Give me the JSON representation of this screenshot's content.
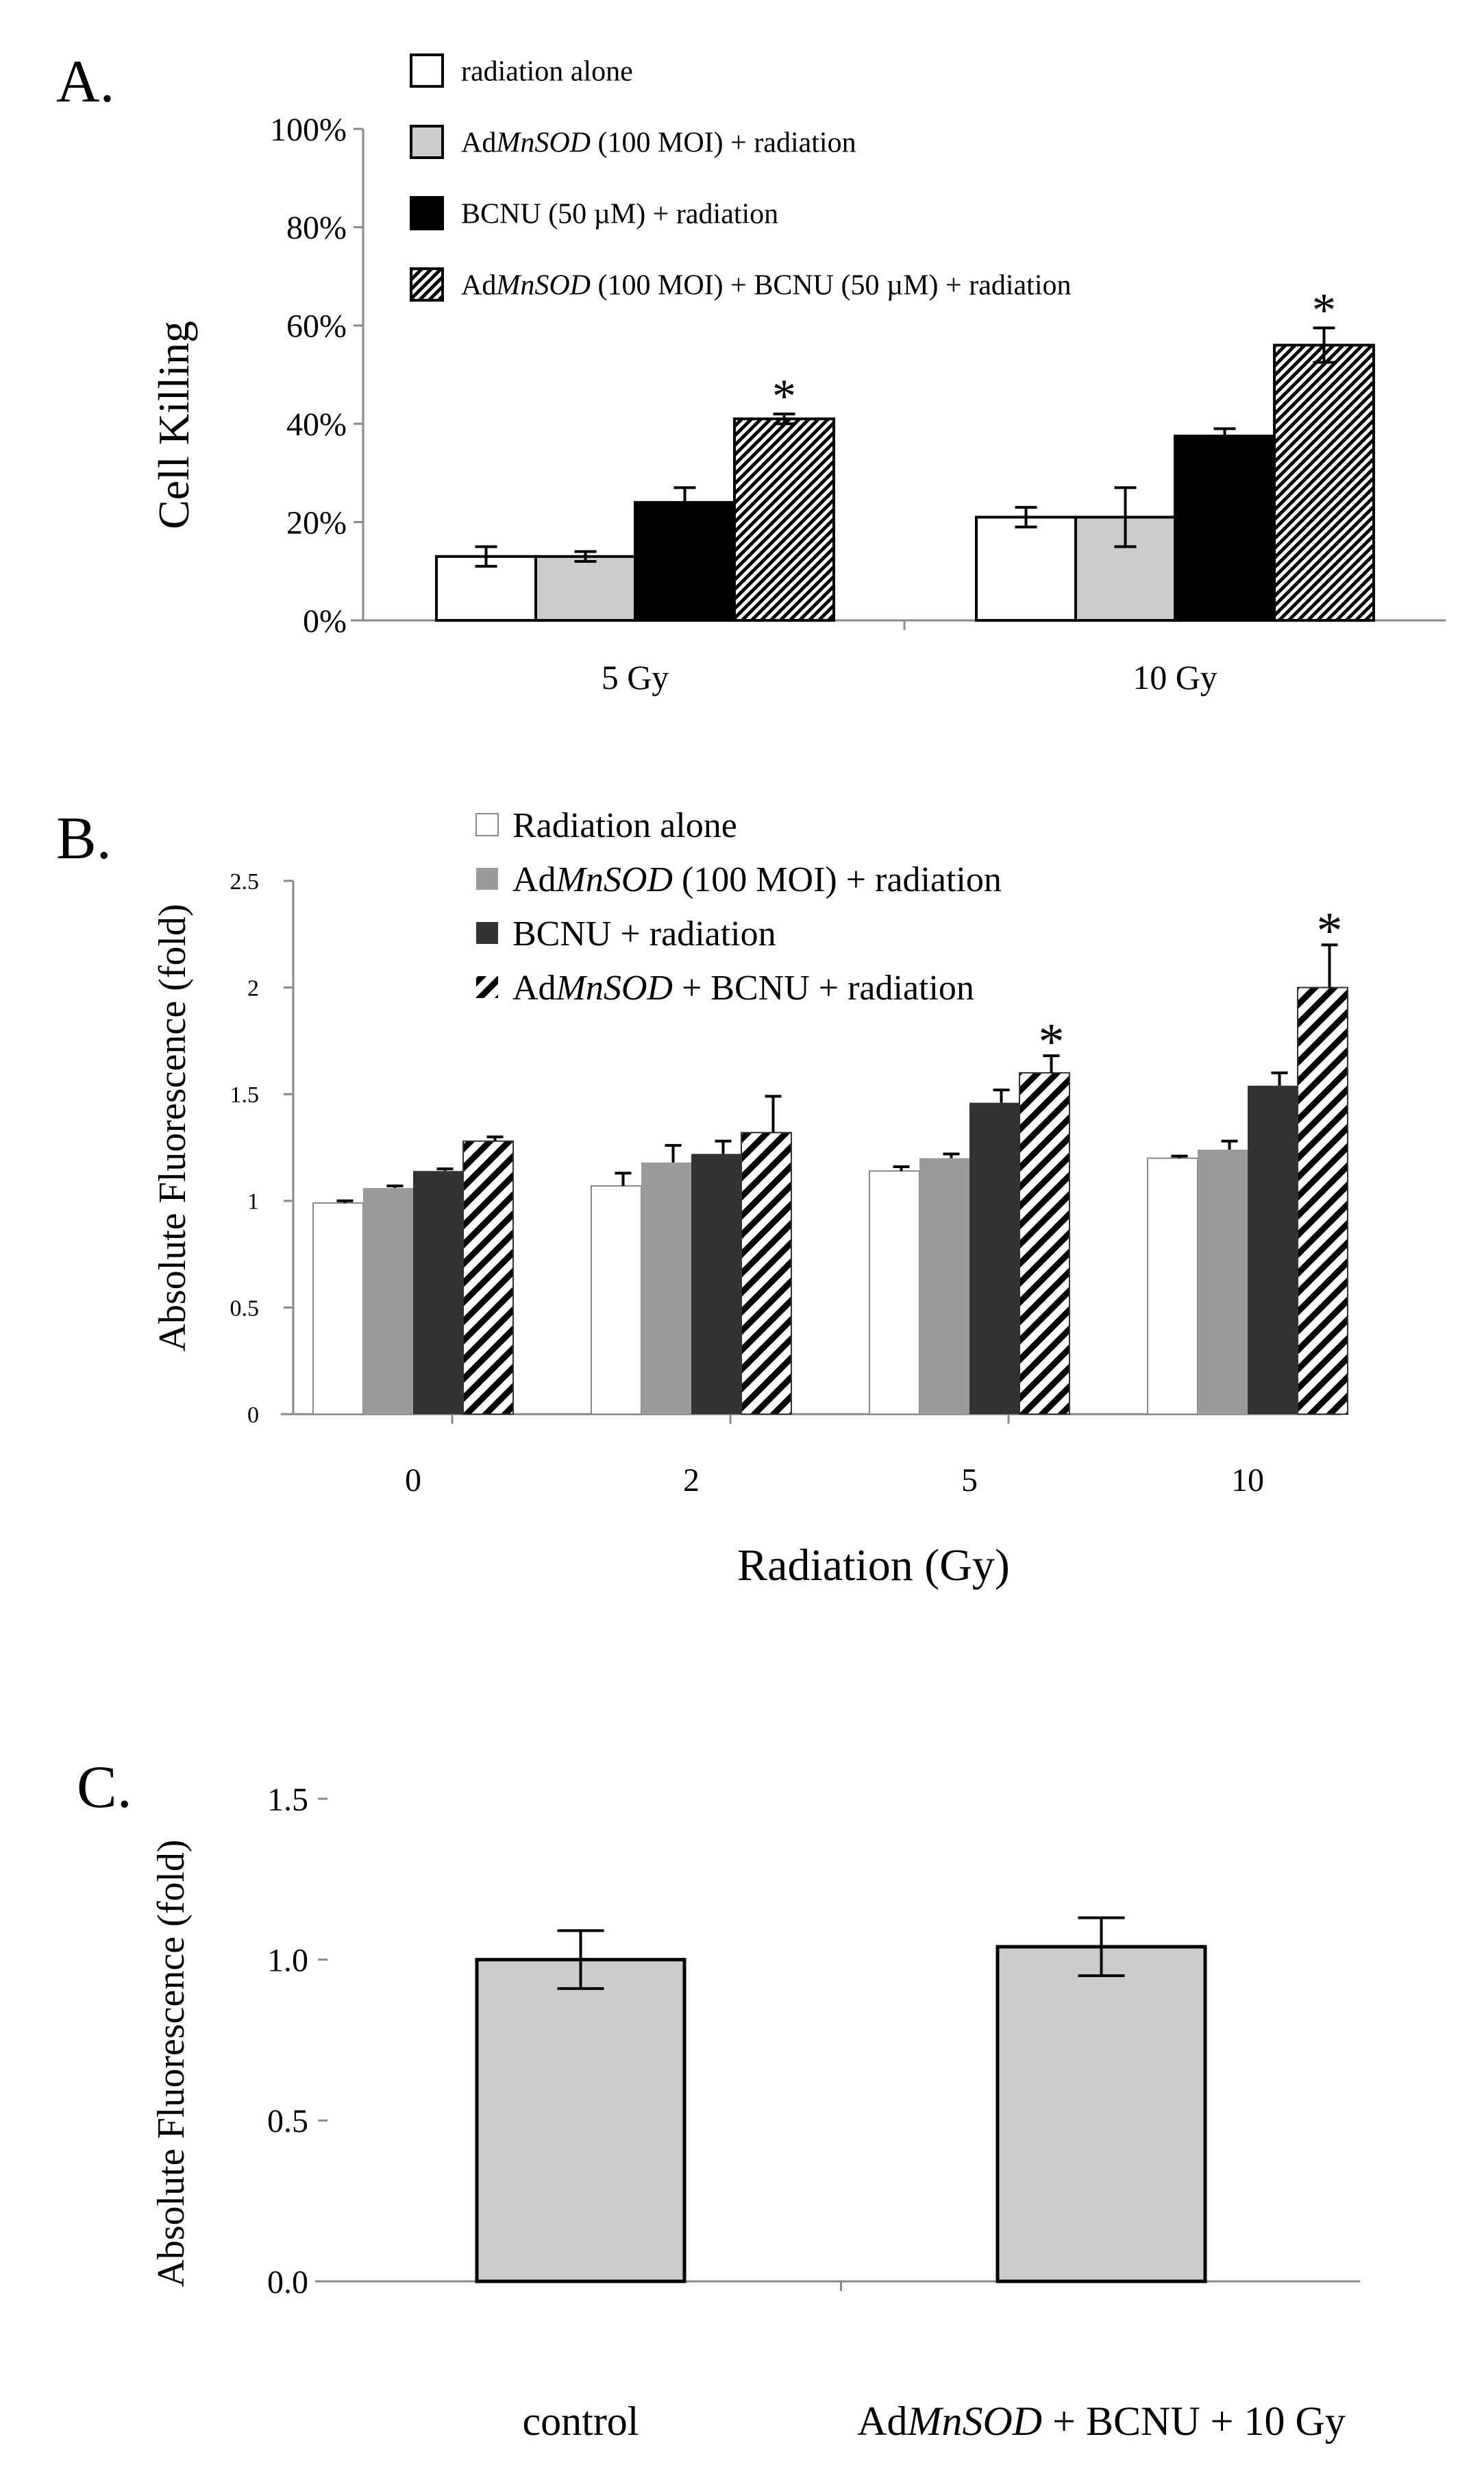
{
  "chart_data": [
    {
      "panel": "A.",
      "type": "bar",
      "ylabel": "Cell Killing",
      "xlabel": "",
      "ylim": [
        0,
        100
      ],
      "yticks": [
        "0%",
        "20%",
        "40%",
        "60%",
        "80%",
        "100%"
      ],
      "ytick_values": [
        0,
        20,
        40,
        60,
        80,
        100
      ],
      "categories": [
        "5 Gy",
        "10 Gy"
      ],
      "legend_position": "top-left",
      "series": [
        {
          "name": "radiation alone",
          "legend": [
            {
              "t": "radiation alone",
              "i": false
            }
          ],
          "fill": "white",
          "values": [
            13,
            21
          ],
          "errors": [
            2,
            2
          ]
        },
        {
          "name": "AdMnSOD (100 MOI) + radiation",
          "legend": [
            {
              "t": "Ad",
              "i": false
            },
            {
              "t": "MnSOD",
              "i": true
            },
            {
              "t": " (100 MOI) + radiation",
              "i": false
            }
          ],
          "fill": "lightgray",
          "values": [
            13,
            21
          ],
          "errors": [
            1,
            6
          ]
        },
        {
          "name": "BCNU (50 µM) + radiation",
          "legend": [
            {
              "t": "BCNU (50 µM) + radiation",
              "i": false
            }
          ],
          "fill": "black",
          "values": [
            24,
            37.5
          ],
          "errors": [
            3,
            1.5
          ]
        },
        {
          "name": "AdMnSOD (100 MOI) + BCNU (50 µM) + radiation",
          "legend": [
            {
              "t": "Ad",
              "i": false
            },
            {
              "t": "MnSOD",
              "i": true
            },
            {
              "t": " (100 MOI) + BCNU (50 µM) + radiation",
              "i": false
            }
          ],
          "fill": "hatch",
          "values": [
            41,
            56
          ],
          "errors": [
            1,
            3.5
          ]
        }
      ],
      "significance": [
        {
          "category": "5 Gy",
          "series": 3,
          "label": "*"
        },
        {
          "category": "10 Gy",
          "series": 3,
          "label": "*"
        }
      ]
    },
    {
      "panel": "B.",
      "type": "bar",
      "ylabel": "Absolute Fluorescence (fold)",
      "xlabel": "Radiation (Gy)",
      "ylim": [
        0,
        2.5
      ],
      "yticks": [
        "0",
        "0.5",
        "1",
        "1.5",
        "2",
        "2.5"
      ],
      "ytick_values": [
        0,
        0.5,
        1,
        1.5,
        2,
        2.5
      ],
      "categories": [
        "0",
        "2",
        "5",
        "10"
      ],
      "legend_position": "top-center",
      "series": [
        {
          "name": "Radiation alone",
          "legend": [
            {
              "t": "Radiation alone",
              "i": false
            }
          ],
          "fill": "white",
          "values": [
            0.99,
            1.07,
            1.14,
            1.2
          ],
          "errors": [
            0.01,
            0.06,
            0.02,
            0.01
          ]
        },
        {
          "name": "AdMnSOD (100 MOI) + radiation",
          "legend": [
            {
              "t": "Ad",
              "i": false
            },
            {
              "t": "MnSOD",
              "i": true
            },
            {
              "t": " (100 MOI) + radiation",
              "i": false
            }
          ],
          "fill": "gray",
          "values": [
            1.06,
            1.18,
            1.2,
            1.24
          ],
          "errors": [
            0.01,
            0.08,
            0.02,
            0.04
          ]
        },
        {
          "name": "BCNU + radiation",
          "legend": [
            {
              "t": "BCNU + radiation",
              "i": false
            }
          ],
          "fill": "darkgray",
          "values": [
            1.14,
            1.22,
            1.46,
            1.54
          ],
          "errors": [
            0.01,
            0.06,
            0.06,
            0.06
          ]
        },
        {
          "name": "AdMnSOD + BCNU + radiation",
          "legend": [
            {
              "t": "Ad",
              "i": false
            },
            {
              "t": "MnSOD",
              "i": true
            },
            {
              "t": " + BCNU + radiation",
              "i": false
            }
          ],
          "fill": "stripe",
          "values": [
            1.28,
            1.32,
            1.6,
            2.0
          ],
          "errors": [
            0.02,
            0.17,
            0.08,
            0.2
          ]
        }
      ],
      "significance": [
        {
          "category": "5",
          "series": 3,
          "label": "*"
        },
        {
          "category": "10",
          "series": 3,
          "label": "*"
        }
      ]
    },
    {
      "panel": "C.",
      "type": "bar",
      "ylabel": "Absolute Fluorescence (fold)",
      "xlabel": "",
      "ylim": [
        0,
        1.5
      ],
      "yticks": [
        "0.0",
        "0.5",
        "1.0",
        "1.5"
      ],
      "ytick_values": [
        0,
        0.5,
        1.0,
        1.5
      ],
      "categories": [
        [
          {
            "t": "control",
            "i": false
          }
        ],
        [
          {
            "t": "Ad",
            "i": false
          },
          {
            "t": "MnSOD",
            "i": true
          },
          {
            "t": " + BCNU + 10 Gy",
            "i": false
          }
        ]
      ],
      "category_names": [
        "control",
        "AdMnSOD + BCNU + 10 Gy"
      ],
      "series": [
        {
          "name": "Absolute Fluorescence",
          "fill": "lightgray",
          "values": [
            1.0,
            1.04
          ],
          "errors": [
            0.09,
            0.09
          ]
        }
      ]
    }
  ]
}
